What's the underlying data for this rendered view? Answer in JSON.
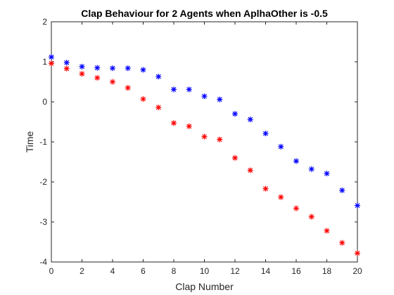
{
  "chart_data": {
    "type": "scatter",
    "title": "Clap Behaviour for 2 Agents when AplhaOther is -0.5",
    "xlabel": "Clap Number",
    "ylabel": "Time",
    "xlim": [
      0,
      20
    ],
    "ylim": [
      -4,
      2
    ],
    "xticks": [
      "0",
      "2",
      "4",
      "6",
      "8",
      "10",
      "12",
      "14",
      "16",
      "18",
      "20"
    ],
    "yticks": [
      "-4",
      "-3",
      "-2",
      "-1",
      "0",
      "1",
      "2"
    ],
    "grid": false,
    "marker": "asterisk",
    "x": [
      0,
      1,
      2,
      3,
      4,
      5,
      6,
      7,
      8,
      9,
      10,
      11,
      12,
      13,
      14,
      15,
      16,
      17,
      18,
      19,
      20
    ],
    "series": [
      {
        "color": "#0000ff",
        "values": [
          1.12,
          0.98,
          0.88,
          0.85,
          0.84,
          0.84,
          0.8,
          0.63,
          0.31,
          0.31,
          0.14,
          0.06,
          -0.3,
          -0.44,
          -0.79,
          -1.12,
          -1.48,
          -1.68,
          -1.79,
          -2.21,
          -2.59
        ]
      },
      {
        "color": "#ff0000",
        "values": [
          0.96,
          0.83,
          0.7,
          0.6,
          0.5,
          0.35,
          0.07,
          -0.14,
          -0.53,
          -0.61,
          -0.87,
          -0.94,
          -1.4,
          -1.71,
          -2.17,
          -2.38,
          -2.66,
          -2.87,
          -3.22,
          -3.52,
          -3.78
        ]
      }
    ]
  }
}
